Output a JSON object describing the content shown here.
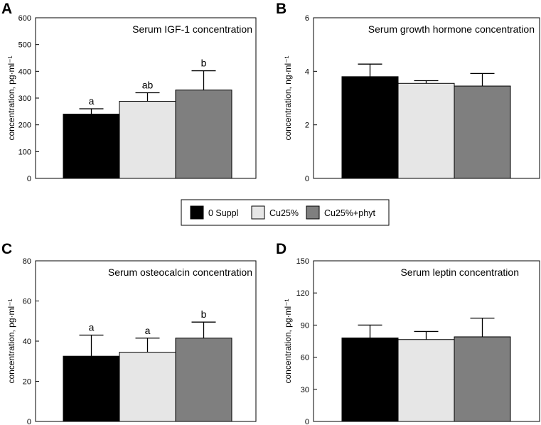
{
  "legend": {
    "entries": [
      {
        "label": "0 Suppl",
        "color": "#000000"
      },
      {
        "label": "Cu25%",
        "color": "#e6e6e6"
      },
      {
        "label": "Cu25%+phyt",
        "color": "#7f7f7f"
      }
    ]
  },
  "chart_data": [
    {
      "panel": "A",
      "type": "bar",
      "title": "Serum IGF-1 concentration",
      "ylabel": "concentration, pg·ml⁻¹",
      "ylim": [
        0,
        600
      ],
      "yticks": [
        0,
        100,
        200,
        300,
        400,
        500,
        600
      ],
      "categories": [
        "0 Suppl",
        "Cu25%",
        "Cu25%+phyt"
      ],
      "values": [
        240,
        288,
        330
      ],
      "errors": [
        20,
        32,
        72
      ],
      "significance": [
        "a",
        "ab",
        "b"
      ]
    },
    {
      "panel": "B",
      "type": "bar",
      "title": "Serum growth hormone concentration",
      "ylabel": "concentration, ng·ml⁻¹",
      "ylim": [
        0,
        6
      ],
      "yticks": [
        0,
        2,
        4,
        6
      ],
      "categories": [
        "0 Suppl",
        "Cu25%",
        "Cu25%+phyt"
      ],
      "values": [
        3.8,
        3.55,
        3.45
      ],
      "errors": [
        0.47,
        0.1,
        0.47
      ],
      "significance": [
        "",
        "",
        ""
      ]
    },
    {
      "panel": "C",
      "type": "bar",
      "title": "Serum osteocalcin concentration",
      "ylabel": "concentration, pg·ml⁻¹",
      "ylim": [
        0,
        80
      ],
      "yticks": [
        0,
        20,
        40,
        60,
        80
      ],
      "categories": [
        "0 Suppl",
        "Cu25%",
        "Cu25%+phyt"
      ],
      "values": [
        32.5,
        34.5,
        41.5
      ],
      "errors": [
        10.5,
        7,
        8
      ],
      "significance": [
        "a",
        "a",
        "b"
      ]
    },
    {
      "panel": "D",
      "type": "bar",
      "title": "Serum leptin concentration",
      "ylabel": "concentration, pg·ml⁻¹",
      "ylim": [
        0,
        150
      ],
      "yticks": [
        0,
        30,
        60,
        90,
        120,
        150
      ],
      "categories": [
        "0 Suppl",
        "Cu25%",
        "Cu25%+phyt"
      ],
      "values": [
        78,
        76.5,
        79
      ],
      "errors": [
        12,
        7.5,
        17.5
      ],
      "significance": [
        "",
        "",
        ""
      ]
    }
  ]
}
